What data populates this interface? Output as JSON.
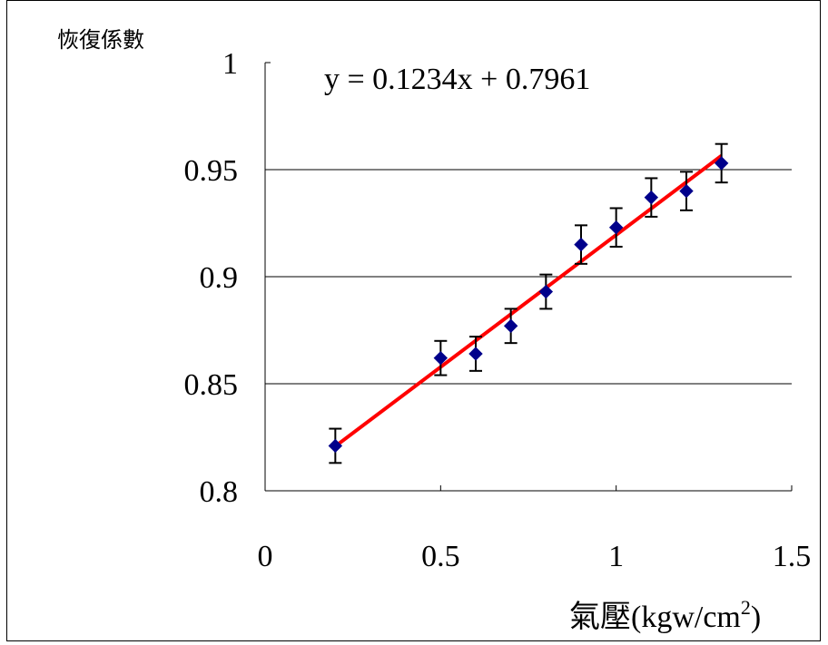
{
  "chart_data": {
    "type": "scatter",
    "ylabel": "恢復係數",
    "xlabel": "氣壓(kgw/cm",
    "xlabel_sup": "2",
    "xlabel_close": ")",
    "equation": "y = 0.1234x + 0.7961",
    "xlim": [
      0,
      1.5
    ],
    "ylim": [
      0.8,
      1.0
    ],
    "xticks": [
      0,
      0.5,
      1,
      1.5
    ],
    "xtick_labels": [
      "0",
      "0.5",
      "1",
      "1.5"
    ],
    "yticks": [
      0.8,
      0.85,
      0.9,
      0.95,
      1.0
    ],
    "ytick_labels": [
      "0.8",
      "0.85",
      "0.9",
      "0.95",
      "1"
    ],
    "gridlines_y": [
      0.85,
      0.9,
      0.95
    ],
    "grid": "horizontal",
    "series": [
      {
        "x": [
          0.2,
          0.5,
          0.6,
          0.7,
          0.8,
          0.9,
          1.0,
          1.1,
          1.2,
          1.3
        ],
        "y": [
          0.821,
          0.862,
          0.864,
          0.877,
          0.893,
          0.915,
          0.923,
          0.937,
          0.94,
          0.953
        ],
        "error": [
          0.008,
          0.008,
          0.008,
          0.008,
          0.008,
          0.009,
          0.009,
          0.009,
          0.009,
          0.009
        ],
        "color": "#00008B",
        "marker": "diamond"
      }
    ],
    "trendline": {
      "slope": 0.1234,
      "intercept": 0.7961,
      "x_range": [
        0.2,
        1.3
      ],
      "color": "#FF0000"
    },
    "axis_color": "#000000"
  }
}
